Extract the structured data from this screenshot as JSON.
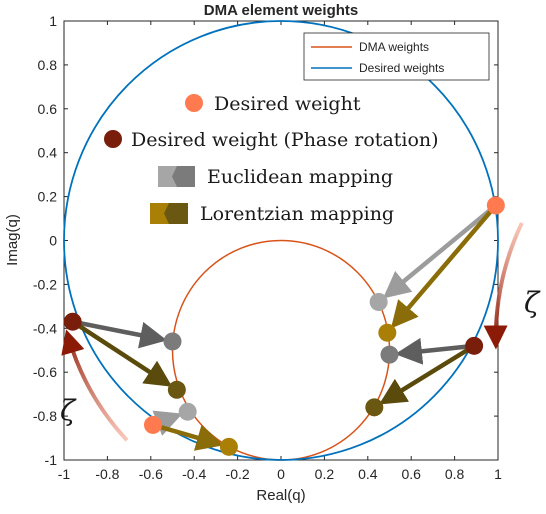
{
  "chart_data": {
    "type": "scatter",
    "title": "DMA element weights",
    "xlabel": "Real(q)",
    "ylabel": "Imag(q)",
    "xlim": [
      -1,
      1
    ],
    "ylim": [
      -1,
      1
    ],
    "xticks": [
      "-1",
      "-0.8",
      "-0.6",
      "-0.4",
      "-0.2",
      "0",
      "0.2",
      "0.4",
      "0.6",
      "0.8",
      "1"
    ],
    "yticks": [
      "-1",
      "-0.8",
      "-0.6",
      "-0.4",
      "-0.2",
      "0",
      "0.2",
      "0.4",
      "0.6",
      "0.8",
      "1"
    ],
    "grid": false,
    "legend": {
      "placement": "top-right",
      "entries": [
        {
          "name": "DMA weights",
          "color": "#d95319"
        },
        {
          "name": "Desired weights",
          "color": "#0072bd"
        }
      ]
    },
    "curves": [
      {
        "name": "DMA weights",
        "shape": "circle",
        "center": [
          0,
          -0.5
        ],
        "radius": 0.5,
        "color": "#d95319"
      },
      {
        "name": "Desired weights",
        "shape": "circle",
        "center": [
          0,
          0
        ],
        "radius": 1,
        "color": "#0072bd"
      }
    ],
    "points": {
      "desired": [
        [
          0.99,
          0.16
        ],
        [
          -0.59,
          -0.84
        ]
      ],
      "phase_rotated": [
        [
          -0.96,
          -0.37
        ],
        [
          0.89,
          -0.48
        ]
      ],
      "euclidean": [
        [
          -0.5,
          -0.46
        ],
        [
          -0.43,
          -0.78
        ],
        [
          0.45,
          -0.28
        ],
        [
          0.5,
          -0.52
        ]
      ],
      "lorentzian": [
        [
          -0.48,
          -0.68
        ],
        [
          -0.24,
          -0.94
        ],
        [
          0.49,
          -0.42
        ],
        [
          0.43,
          -0.76
        ]
      ]
    },
    "arrows": [
      {
        "kind": "euclidean",
        "from": [
          0.99,
          0.16
        ],
        "to": [
          0.45,
          -0.28
        ]
      },
      {
        "kind": "lorentzian",
        "from": [
          0.99,
          0.16
        ],
        "to": [
          0.49,
          -0.42
        ]
      },
      {
        "kind": "euclidean",
        "from": [
          -0.96,
          -0.37
        ],
        "to": [
          -0.5,
          -0.46
        ]
      },
      {
        "kind": "lorentzian",
        "from": [
          -0.96,
          -0.37
        ],
        "to": [
          -0.48,
          -0.68
        ]
      },
      {
        "kind": "euclidean",
        "from": [
          0.89,
          -0.48
        ],
        "to": [
          0.5,
          -0.52
        ]
      },
      {
        "kind": "lorentzian",
        "from": [
          0.89,
          -0.48
        ],
        "to": [
          0.43,
          -0.76
        ]
      },
      {
        "kind": "euclidean",
        "from": [
          -0.59,
          -0.84
        ],
        "to": [
          -0.43,
          -0.78
        ]
      },
      {
        "kind": "lorentzian",
        "from": [
          -0.59,
          -0.84
        ],
        "to": [
          -0.24,
          -0.94
        ]
      }
    ],
    "annotation_legend": [
      {
        "kind": "desired",
        "label": "Desired weight"
      },
      {
        "kind": "phase_rotated",
        "label": "Desired weight (Phase rotation)"
      },
      {
        "kind": "euclidean",
        "label": "Euclidean mapping"
      },
      {
        "kind": "lorentzian",
        "label": "Lorentzian mapping"
      }
    ],
    "rotation_symbol": "ζ",
    "rotation_arrows": [
      {
        "side": "right",
        "from": [
          1.11,
          0.08
        ],
        "to": [
          0.99,
          -0.46
        ]
      },
      {
        "side": "left",
        "from": [
          -0.71,
          -0.91
        ],
        "to": [
          -0.98,
          -0.44
        ]
      }
    ],
    "colors": {
      "desired": "#ff7b4f",
      "phase_rotated": "#7a1e0c",
      "euclidean_light": "#a6a6a6",
      "euclidean_dark": "#7b7b7b",
      "lorentzian_light": "#a98005",
      "lorentzian_dark": "#6a5711",
      "rotation_arrow_start": "#f28a70",
      "rotation_arrow_end": "#8b1a07"
    }
  }
}
